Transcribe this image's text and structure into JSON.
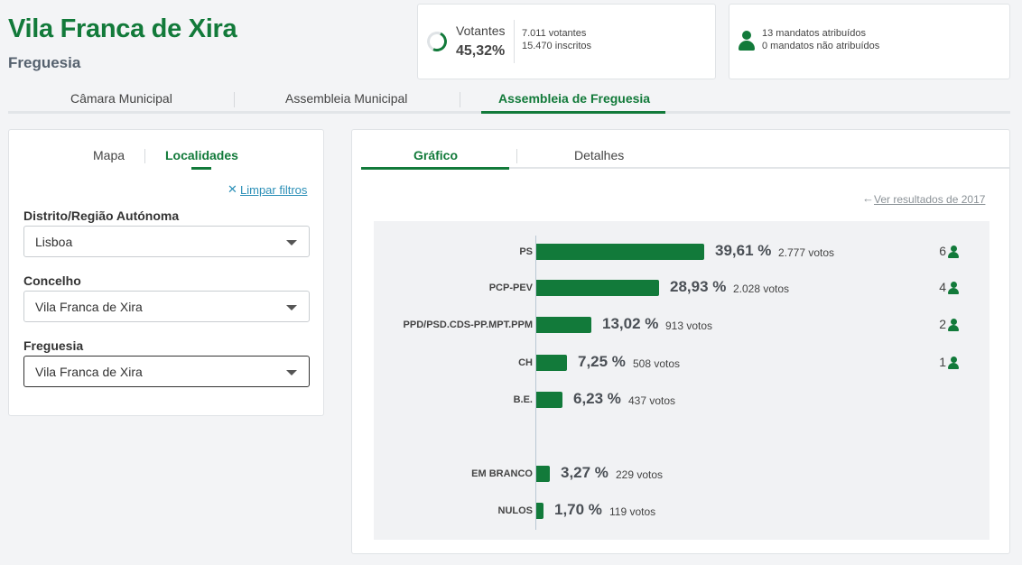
{
  "header": {
    "title": "Vila Franca de Xira",
    "subtitle": "Freguesia"
  },
  "votantes": {
    "label": "Votantes",
    "percent": "45,32%",
    "voters": "7.011 votantes",
    "registered": "15.470 inscritos"
  },
  "mandatos": {
    "assigned": "13 mandatos atribuídos",
    "unassigned": "0 mandatos não atribuídos"
  },
  "main_tabs": [
    {
      "label": "Câmara Municipal",
      "active": false
    },
    {
      "label": "Assembleia Municipal",
      "active": false
    },
    {
      "label": "Assembleia de Freguesia",
      "active": true
    }
  ],
  "left_panel": {
    "tabs": [
      {
        "label": "Mapa",
        "active": false
      },
      {
        "label": "Localidades",
        "active": true
      }
    ],
    "clear_filters": "Limpar filtros",
    "fields": [
      {
        "label": "Distrito/Região Autónoma",
        "value": "Lisboa"
      },
      {
        "label": "Concelho",
        "value": "Vila Franca de Xira"
      },
      {
        "label": "Freguesia",
        "value": "Vila Franca de Xira"
      }
    ]
  },
  "right_panel": {
    "tabs": [
      {
        "label": "Gráfico",
        "active": true
      },
      {
        "label": "Detalhes",
        "active": false
      }
    ],
    "previous_results": "Ver resultados de 2017"
  },
  "colors": {
    "accent": "#127a3a",
    "link": "#2b8fb7"
  },
  "chart_data": {
    "type": "bar",
    "orientation": "horizontal",
    "categories": [
      "PS",
      "PCP-PEV",
      "PPD/PSD.CDS-PP.MPT.PPM",
      "CH",
      "B.E.",
      "EM BRANCO",
      "NULOS"
    ],
    "values": [
      39.61,
      28.93,
      13.02,
      7.25,
      6.23,
      3.27,
      1.7
    ],
    "percent_labels": [
      "39,61 %",
      "28,93 %",
      "13,02 %",
      "7,25 %",
      "6,23 %",
      "3,27 %",
      "1,70 %"
    ],
    "vote_labels": [
      "2.777 votos",
      "2.028 votos",
      "913 votos",
      "508 votos",
      "437 votos",
      "229 votos",
      "119 votos"
    ],
    "seats": [
      "6",
      "4",
      "2",
      "1",
      "",
      "",
      ""
    ]
  }
}
